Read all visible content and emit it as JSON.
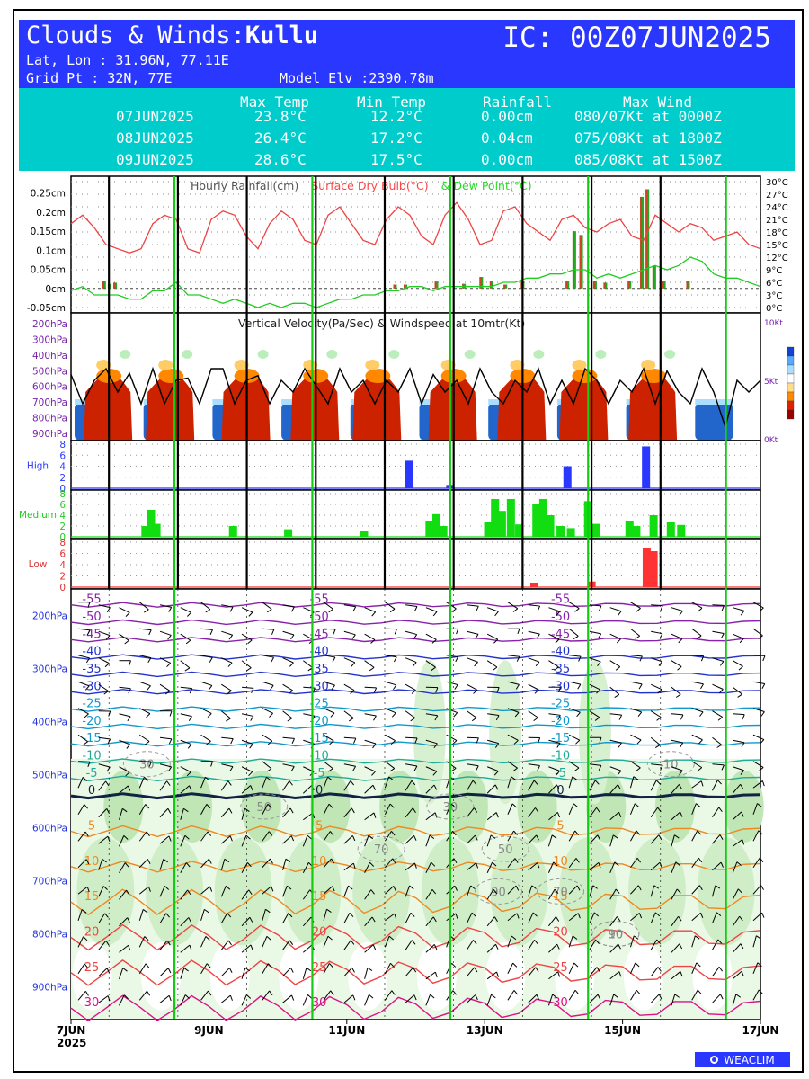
{
  "header": {
    "title_prefix": "Clouds & Winds:",
    "location": "Kullu",
    "ic": "IC: 00Z07JUN2025",
    "latlon": "Lat, Lon : 31.96N, 77.11E",
    "grid": "Grid Pt  : 32N, 77E",
    "elevation": "Model Elv :2390.78m"
  },
  "summary": {
    "headers": [
      "Max Temp",
      "Min Temp",
      "Rainfall",
      "Max Wind"
    ],
    "rows": [
      {
        "date": "07JUN2025",
        "max": "23.8°C",
        "min": "12.2°C",
        "rain": "0.00cm",
        "wind": "080/07Kt at 0000Z"
      },
      {
        "date": "08JUN2025",
        "max": "26.4°C",
        "min": "17.2°C",
        "rain": "0.04cm",
        "wind": "075/08Kt at 1800Z"
      },
      {
        "date": "09JUN2025",
        "max": "28.6°C",
        "min": "17.5°C",
        "rain": "0.00cm",
        "wind": "085/08Kt at 1500Z"
      }
    ]
  },
  "chart_data": {
    "type": "line",
    "x_ticks": [
      "7JUN",
      "9JUN",
      "11JUN",
      "13JUN",
      "15JUN",
      "17JUN"
    ],
    "x_year": "2025",
    "panels": [
      {
        "id": "rain-temp",
        "title_parts": [
          "Hourly Rainfall(cm)",
          "Surface Dry Bulb(°C)",
          "& Dew Point(°C)"
        ],
        "title_colors": [
          "#555555",
          "#ff4444",
          "#22dd22"
        ],
        "left_ticks": [
          "0.25cm",
          "0.2cm",
          "0.15cm",
          "0.1cm",
          "0.05cm",
          "0cm",
          "-0.05cm"
        ],
        "left_range": [
          -0.05,
          0.28
        ],
        "right_ticks": [
          "30°C",
          "27°C",
          "24°C",
          "21°C",
          "18°C",
          "15°C",
          "12°C",
          "9°C",
          "6°C",
          "3°C",
          "0°C"
        ],
        "right_range": [
          0,
          30
        ],
        "dry_bulb": [
          20,
          22,
          19,
          15,
          14,
          13,
          14,
          20,
          22,
          21,
          14,
          13,
          21,
          23,
          22,
          17,
          14,
          20,
          23,
          21,
          16,
          15,
          22,
          24,
          20,
          16,
          15,
          21,
          24,
          22,
          17,
          15,
          22,
          25,
          21,
          15,
          16,
          23,
          24,
          20,
          18,
          16,
          21,
          22,
          19,
          18,
          20,
          21,
          17,
          16,
          22,
          20,
          18,
          20,
          19,
          16,
          17,
          18,
          15,
          14
        ],
        "dew_point": [
          4,
          5,
          3,
          3,
          3,
          2,
          2,
          4,
          4,
          6,
          3,
          3,
          2,
          1,
          2,
          1,
          0,
          1,
          0,
          1,
          1,
          0,
          1,
          2,
          2,
          3,
          3,
          4,
          4,
          5,
          5,
          4,
          5,
          5,
          5,
          5,
          5,
          6,
          6,
          7,
          7,
          8,
          8,
          9,
          9,
          7,
          8,
          7,
          8,
          9,
          10,
          9,
          10,
          12,
          11,
          8,
          7,
          7,
          6,
          5
        ],
        "rain": [
          {
            "t": 0.48,
            "v": 0.02
          },
          {
            "t": 0.56,
            "v": 0.012
          },
          {
            "t": 0.64,
            "v": 0.015
          },
          {
            "t": 4.7,
            "v": 0.01
          },
          {
            "t": 4.85,
            "v": 0.01
          },
          {
            "t": 5.3,
            "v": 0.018
          },
          {
            "t": 5.7,
            "v": 0.012
          },
          {
            "t": 5.95,
            "v": 0.03
          },
          {
            "t": 6.1,
            "v": 0.02
          },
          {
            "t": 6.3,
            "v": 0.01
          },
          {
            "t": 6.55,
            "v": 0.02
          },
          {
            "t": 7.2,
            "v": 0.02
          },
          {
            "t": 7.3,
            "v": 0.15
          },
          {
            "t": 7.4,
            "v": 0.14
          },
          {
            "t": 7.6,
            "v": 0.02
          },
          {
            "t": 7.75,
            "v": 0.015
          },
          {
            "t": 8.1,
            "v": 0.02
          },
          {
            "t": 8.28,
            "v": 0.24
          },
          {
            "t": 8.36,
            "v": 0.26
          },
          {
            "t": 8.46,
            "v": 0.06
          },
          {
            "t": 8.6,
            "v": 0.02
          },
          {
            "t": 8.95,
            "v": 0.02
          }
        ]
      },
      {
        "id": "vertical-velocity",
        "title": "Vertical Velocity(Pa/Sec) & Windspeed at 10mtr(Kt)",
        "left_ticks": [
          "200hPa",
          "300hPa",
          "400hPa",
          "500hPa",
          "600hPa",
          "700hPa",
          "800hPa",
          "900hPa"
        ],
        "right_ticks": [
          "10Kt",
          "5Kt",
          "0Kt"
        ],
        "right_range": [
          0,
          10
        ],
        "legend_colors": [
          "#1144cc",
          "#55aaff",
          "#aaddff",
          "#ffffff",
          "#ffdd88",
          "#ff8800",
          "#dd2200",
          "#990000"
        ],
        "wind10m": [
          5.5,
          3,
          5,
          6,
          4,
          5.6,
          3,
          6,
          3,
          5,
          5.2,
          3,
          6,
          6,
          3,
          5,
          5.4,
          3,
          5,
          4,
          6,
          4.5,
          3,
          6,
          4,
          5,
          3,
          5,
          4,
          6,
          3,
          5.5,
          4,
          5,
          3,
          6,
          4,
          3,
          5,
          4,
          6,
          3,
          5,
          3,
          6,
          5,
          3,
          5,
          4,
          6,
          3,
          5.8,
          4,
          3,
          6,
          4,
          1,
          5,
          4,
          5
        ],
        "updraft_columns": [
          0.55,
          1.45,
          2.55,
          3.55,
          4.45,
          5.55,
          6.55,
          7.45,
          8.45
        ]
      },
      {
        "id": "cloud-high",
        "label": "High",
        "label_color": "#2a38ff",
        "ticks": [
          "8",
          "6",
          "4",
          "2",
          "0"
        ],
        "range": [
          0,
          8
        ],
        "bar_color": "#2a38ff",
        "bars": [
          {
            "t": 4.9,
            "v": 5
          },
          {
            "t": 5.5,
            "v": 0.6
          },
          {
            "t": 7.2,
            "v": 4
          },
          {
            "t": 8.34,
            "v": 7.6
          }
        ]
      },
      {
        "id": "cloud-medium",
        "label": "Medium",
        "label_color": "#22cc22",
        "ticks": [
          "8",
          "6",
          "4",
          "2",
          "0"
        ],
        "range": [
          0,
          8
        ],
        "bar_color": "#11dd11",
        "bars": [
          {
            "t": 1.08,
            "v": 2
          },
          {
            "t": 1.16,
            "v": 5
          },
          {
            "t": 1.24,
            "v": 2.4
          },
          {
            "t": 2.35,
            "v": 2
          },
          {
            "t": 3.15,
            "v": 1.4
          },
          {
            "t": 4.25,
            "v": 1
          },
          {
            "t": 5.2,
            "v": 3
          },
          {
            "t": 5.3,
            "v": 4.2
          },
          {
            "t": 5.4,
            "v": 2
          },
          {
            "t": 6.05,
            "v": 2.7
          },
          {
            "t": 6.15,
            "v": 7
          },
          {
            "t": 6.25,
            "v": 4.8
          },
          {
            "t": 6.38,
            "v": 7
          },
          {
            "t": 6.5,
            "v": 2.3
          },
          {
            "t": 6.75,
            "v": 6
          },
          {
            "t": 6.85,
            "v": 7
          },
          {
            "t": 6.95,
            "v": 4
          },
          {
            "t": 7.1,
            "v": 2
          },
          {
            "t": 7.25,
            "v": 1.6
          },
          {
            "t": 7.5,
            "v": 6.6
          },
          {
            "t": 7.62,
            "v": 2.4
          },
          {
            "t": 8.1,
            "v": 3
          },
          {
            "t": 8.2,
            "v": 2
          },
          {
            "t": 8.45,
            "v": 4
          },
          {
            "t": 8.7,
            "v": 2.7
          },
          {
            "t": 8.85,
            "v": 2.2
          }
        ]
      },
      {
        "id": "cloud-low",
        "label": "Low",
        "label_color": "#dd3333",
        "ticks": [
          "8",
          "6",
          "4",
          "2",
          "0"
        ],
        "range": [
          0,
          8
        ],
        "bar_color": "#ff3333",
        "bars": [
          {
            "t": 6.72,
            "v": 0.8
          },
          {
            "t": 7.55,
            "v": 1
          },
          {
            "t": 8.35,
            "v": 7
          },
          {
            "t": 8.45,
            "v": 6.4
          }
        ]
      },
      {
        "id": "winds-profile",
        "left_ticks": [
          "200hPa",
          "300hPa",
          "400hPa",
          "500hPa",
          "600hPa",
          "700hPa",
          "800hPa",
          "900hPa"
        ],
        "pressure_range": [
          150,
          960
        ],
        "temperature_isotherms": [
          "-55",
          "-50",
          "-45",
          "-40",
          "-35",
          "-30",
          "-25",
          "-20",
          "-15",
          "-10",
          "-5",
          "0",
          "5",
          "10",
          "15",
          "20",
          "25",
          "30"
        ],
        "rh_labels": [
          "30",
          "50",
          "70",
          "90",
          "10"
        ],
        "zero_isotherm_hpa": 540
      }
    ],
    "day_separators_black": [
      0.55,
      1.55,
      2.55,
      3.55,
      4.55,
      5.55,
      6.55,
      7.55,
      8.55
    ],
    "marker_green": [
      1.5,
      3.5,
      5.5,
      7.5,
      9.5
    ]
  },
  "brand": {
    "logo_text": "WEACLIM"
  }
}
